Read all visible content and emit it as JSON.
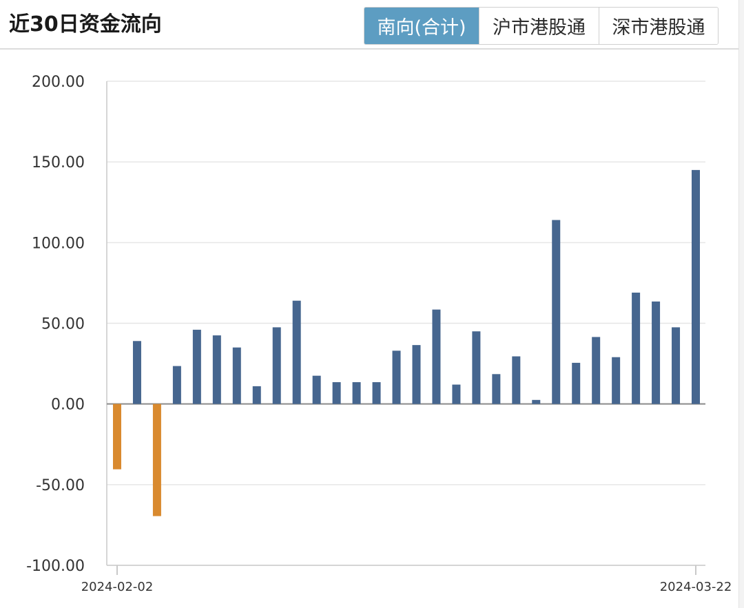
{
  "header": {
    "title": "近30日资金流向",
    "tabs": [
      {
        "label": "南向(合计)",
        "active": true
      },
      {
        "label": "沪市港股通",
        "active": false
      },
      {
        "label": "深市港股通",
        "active": false
      }
    ]
  },
  "colors": {
    "positive_bar": "#46668f",
    "negative_bar": "#d98a2f",
    "active_tab": "#5d9dc2",
    "grid": "#e6e6e6",
    "axis": "#c9c9c9"
  },
  "chart_data": {
    "type": "bar",
    "title": "",
    "xlabel": "",
    "ylabel": "",
    "ylim": [
      -100,
      200
    ],
    "yticks": [
      200,
      150,
      100,
      50,
      0,
      -50,
      -100
    ],
    "ytick_labels": [
      "200.00",
      "150.00",
      "100.00",
      "50.00",
      "0.00",
      "-50.00",
      "-100.00"
    ],
    "grid": true,
    "x_start_label": "2024-02-02",
    "x_end_label": "2024-03-22",
    "values": [
      -40.5,
      39,
      -69.5,
      23.5,
      46,
      42.5,
      35,
      11,
      47.5,
      64,
      17.5,
      13.5,
      13.5,
      13.5,
      33,
      36.5,
      58.5,
      12,
      45,
      18.5,
      29.5,
      2.5,
      114,
      25.5,
      41.5,
      29,
      69,
      63.5,
      47.5,
      145
    ]
  }
}
